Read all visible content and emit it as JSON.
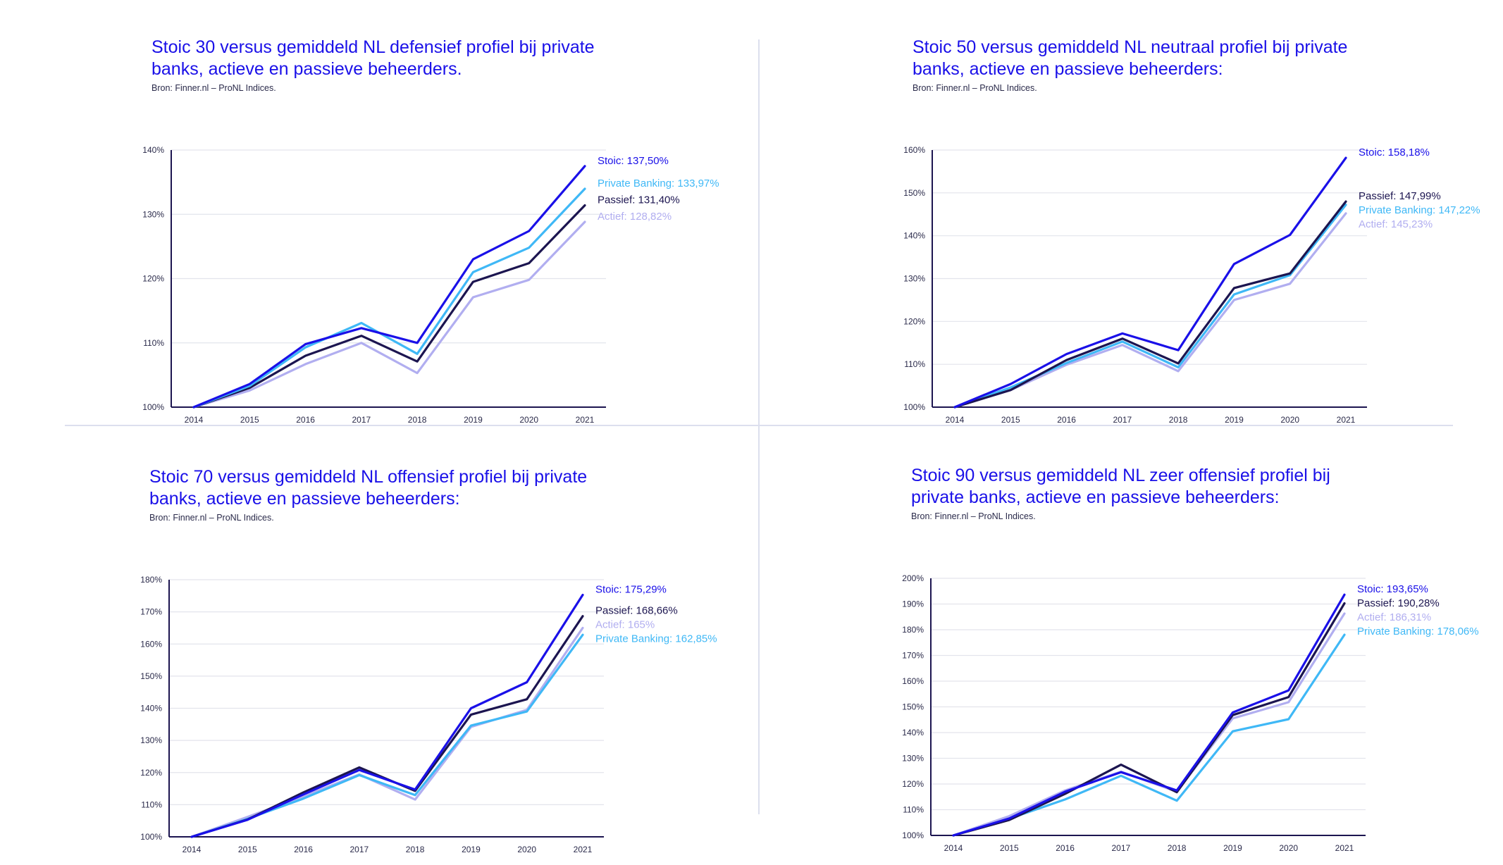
{
  "source_note": "Bron: Finner.nl – ProNL Indices.",
  "colors": {
    "stoic": "#1a10e8",
    "private_banking": "#3fb8f6",
    "passief": "#1c1550",
    "actief": "#b1aef0",
    "title": "#1a10e8",
    "axis": "#1c1550",
    "grid": "#e3e4ec"
  },
  "chart_data": [
    {
      "type": "line",
      "title": "Stoic 30 versus gemiddeld NL defensief profiel bij private banks, actieve en passieve beheerders.",
      "source": "Bron: Finner.nl – ProNL Indices.",
      "x": [
        "2014",
        "2015",
        "2016",
        "2017",
        "2018",
        "2019",
        "2020",
        "2021"
      ],
      "ylim": [
        100,
        140
      ],
      "yticks": [
        100,
        110,
        120,
        130,
        140
      ],
      "ytick_labels": [
        "100%",
        "110%",
        "120%",
        "130%",
        "140%"
      ],
      "series": [
        {
          "key": "actief",
          "name": "Actief",
          "values": [
            100,
            102.6,
            106.7,
            110.0,
            105.3,
            117.1,
            119.8,
            128.82
          ],
          "end_label": "Actief: 128,82%"
        },
        {
          "key": "passief",
          "name": "Passief",
          "values": [
            100,
            103.0,
            108.0,
            111.1,
            107.1,
            119.5,
            122.4,
            131.4
          ],
          "end_label": "Passief: 131,40%"
        },
        {
          "key": "private_banking",
          "name": "Private Banking",
          "values": [
            100,
            103.3,
            109.3,
            113.1,
            108.3,
            121.0,
            124.8,
            133.97
          ],
          "end_label": "Private Banking: 133,97%"
        },
        {
          "key": "stoic",
          "name": "Stoic",
          "values": [
            100,
            103.6,
            109.8,
            112.3,
            110.0,
            123.0,
            127.4,
            137.5
          ],
          "end_label": "Stoic: 137,50%"
        }
      ]
    },
    {
      "type": "line",
      "title": "Stoic 50 versus gemiddeld NL neutraal profiel bij private banks, actieve en passieve beheerders:",
      "source": "Bron: Finner.nl – ProNL Indices.",
      "x": [
        "2014",
        "2015",
        "2016",
        "2017",
        "2018",
        "2019",
        "2020",
        "2021"
      ],
      "ylim": [
        100,
        160
      ],
      "yticks": [
        100,
        110,
        120,
        130,
        140,
        150,
        160
      ],
      "ytick_labels": [
        "100%",
        "110%",
        "120%",
        "130%",
        "140%",
        "150%",
        "160%"
      ],
      "series": [
        {
          "key": "actief",
          "name": "Actief",
          "values": [
            100,
            104.0,
            109.9,
            114.5,
            108.4,
            125.0,
            128.8,
            145.23
          ],
          "end_label": "Actief: 145,23%"
        },
        {
          "key": "private_banking",
          "name": "Private Banking",
          "values": [
            100,
            104.6,
            110.3,
            115.3,
            109.3,
            126.3,
            130.8,
            147.22
          ],
          "end_label": "Private Banking: 147,22%"
        },
        {
          "key": "passief",
          "name": "Passief",
          "values": [
            100,
            104.0,
            111.0,
            116.0,
            110.2,
            127.8,
            131.2,
            147.99
          ],
          "end_label": "Passief: 147,99%"
        },
        {
          "key": "stoic",
          "name": "Stoic",
          "values": [
            100,
            105.4,
            112.4,
            117.2,
            113.3,
            133.4,
            140.2,
            158.18
          ],
          "end_label": "Stoic: 158,18%"
        }
      ]
    },
    {
      "type": "line",
      "title": "Stoic 70 versus gemiddeld NL offensief profiel bij private banks, actieve en passieve beheerders:",
      "source": "Bron: Finner.nl – ProNL Indices.",
      "x": [
        "2014",
        "2015",
        "2016",
        "2017",
        "2018",
        "2019",
        "2020",
        "2021"
      ],
      "ylim": [
        100,
        180
      ],
      "yticks": [
        100,
        110,
        120,
        130,
        140,
        150,
        160,
        170,
        180
      ],
      "ytick_labels": [
        "100%",
        "110%",
        "120%",
        "130%",
        "140%",
        "150%",
        "160%",
        "170%",
        "180%"
      ],
      "series": [
        {
          "key": "actief",
          "name": "Actief",
          "values": [
            100,
            106.2,
            112.6,
            119.4,
            111.6,
            134.2,
            139.5,
            165.0
          ],
          "end_label": "Actief: 165%"
        },
        {
          "key": "private_banking",
          "name": "Private Banking",
          "values": [
            100,
            105.6,
            111.9,
            119.2,
            113.0,
            134.6,
            139.0,
            162.85
          ],
          "end_label": "Private Banking: 162,85%"
        },
        {
          "key": "passief",
          "name": "Passief",
          "values": [
            100,
            105.4,
            113.8,
            121.6,
            114.3,
            138.0,
            142.8,
            168.66
          ],
          "end_label": "Passief: 168,66%"
        },
        {
          "key": "stoic",
          "name": "Stoic",
          "values": [
            100,
            105.3,
            113.2,
            120.8,
            114.7,
            140.0,
            148.1,
            175.29
          ],
          "end_label": "Stoic: 175,29%"
        }
      ]
    },
    {
      "type": "line",
      "title": "Stoic 90 versus gemiddeld NL zeer offensief profiel bij private banks, actieve en passieve beheerders:",
      "source": "Bron: Finner.nl – ProNL Indices.",
      "x": [
        "2014",
        "2015",
        "2016",
        "2017",
        "2018",
        "2019",
        "2020",
        "2021"
      ],
      "ylim": [
        100,
        200
      ],
      "yticks": [
        100,
        110,
        120,
        130,
        140,
        150,
        160,
        170,
        180,
        190,
        200
      ],
      "ytick_labels": [
        "100%",
        "110%",
        "120%",
        "130%",
        "140%",
        "150%",
        "160%",
        "170%",
        "180%",
        "190%",
        "200%"
      ],
      "series": [
        {
          "key": "actief",
          "name": "Actief",
          "values": [
            100,
            107.5,
            117.5,
            124.8,
            117.0,
            145.5,
            151.8,
            186.31
          ],
          "end_label": "Actief: 186,31%"
        },
        {
          "key": "private_banking",
          "name": "Private Banking",
          "values": [
            100,
            106.5,
            114.0,
            123.2,
            113.5,
            140.5,
            145.2,
            178.06
          ],
          "end_label": "Private Banking: 178,06%"
        },
        {
          "key": "passief",
          "name": "Passief",
          "values": [
            100,
            106.0,
            116.2,
            127.5,
            116.8,
            146.8,
            153.8,
            190.28
          ],
          "end_label": "Passief: 190,28%"
        },
        {
          "key": "stoic",
          "name": "Stoic",
          "values": [
            100,
            106.6,
            117.0,
            124.6,
            117.5,
            147.8,
            156.4,
            193.65
          ],
          "end_label": "Stoic: 193,65%"
        }
      ]
    }
  ]
}
